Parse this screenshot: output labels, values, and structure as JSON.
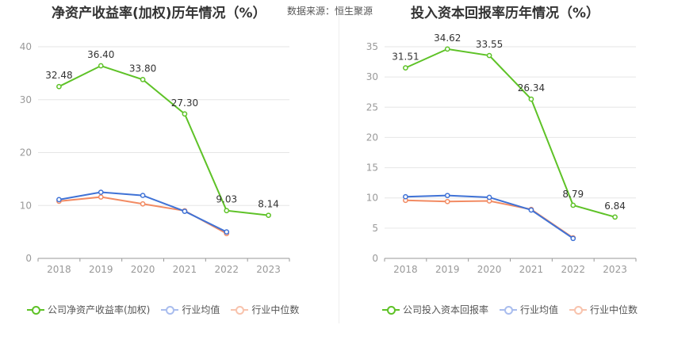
{
  "source_note": "数据来源：恒生聚源",
  "colors": {
    "company": "#5ec227",
    "avg": "#3f72d6",
    "median": "#f28b63",
    "grid": "#e6e6e6",
    "axis": "#999999",
    "text": "#999999",
    "label": "#333333"
  },
  "chart_data": [
    {
      "type": "line",
      "title": "净资产收益率(加权)历年情况（%）",
      "x": [
        "2018",
        "2019",
        "2020",
        "2021",
        "2022",
        "2023"
      ],
      "ylim": [
        0,
        40
      ],
      "yticks": [
        0,
        10,
        20,
        30,
        40
      ],
      "grid": true,
      "legend_position": "bottom",
      "series": [
        {
          "name": "公司净资产收益率(加权)",
          "key": "company",
          "values": [
            32.48,
            36.4,
            33.8,
            27.3,
            9.03,
            8.14
          ],
          "labels": [
            "32.48",
            "36.40",
            "33.80",
            "27.30",
            "9.03",
            "8.14"
          ]
        },
        {
          "name": "行业均值",
          "key": "avg",
          "values": [
            11.1,
            12.5,
            11.9,
            8.9,
            5.0,
            null
          ]
        },
        {
          "name": "行业中位数",
          "key": "median",
          "values": [
            10.8,
            11.6,
            10.3,
            9.0,
            4.7,
            null
          ]
        }
      ]
    },
    {
      "type": "line",
      "title": "投入资本回报率历年情况（%）",
      "x": [
        "2018",
        "2019",
        "2020",
        "2021",
        "2022",
        "2023"
      ],
      "ylim": [
        0,
        35
      ],
      "yticks": [
        0,
        5,
        10,
        15,
        20,
        25,
        30,
        35
      ],
      "grid": true,
      "legend_position": "bottom",
      "series": [
        {
          "name": "公司投入资本回报率",
          "key": "company",
          "values": [
            31.51,
            34.62,
            33.55,
            26.34,
            8.79,
            6.84
          ],
          "labels": [
            "31.51",
            "34.62",
            "33.55",
            "26.34",
            "8.79",
            "6.84"
          ]
        },
        {
          "name": "行业均值",
          "key": "avg",
          "values": [
            10.2,
            10.4,
            10.1,
            8.0,
            3.3,
            null
          ]
        },
        {
          "name": "行业中位数",
          "key": "median",
          "values": [
            9.6,
            9.4,
            9.5,
            8.1,
            3.4,
            null
          ]
        }
      ]
    }
  ]
}
